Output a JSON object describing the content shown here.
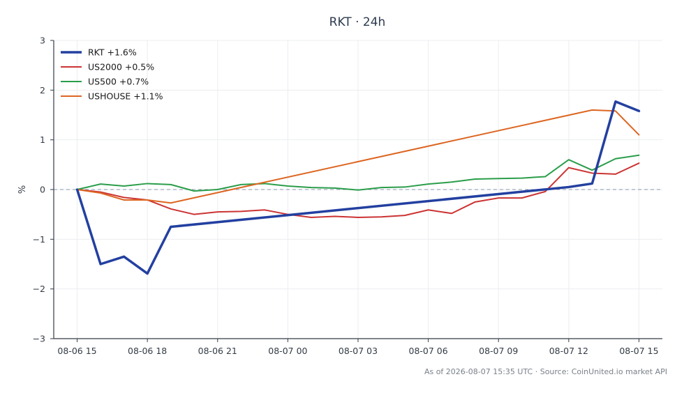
{
  "chart_data": {
    "type": "line",
    "title": "RKT · 24h",
    "xlabel": "",
    "ylabel": "%",
    "ylim": [
      -3,
      3
    ],
    "yticks": [
      3,
      2,
      1,
      0,
      -1,
      -2,
      -3
    ],
    "ytick_labels": [
      "3",
      "2",
      "1",
      "0",
      "−1",
      "−2",
      "−3"
    ],
    "xlim": [
      "08-06 14",
      "08-07 16"
    ],
    "x_ticks": [
      "08-06 15",
      "08-06 18",
      "08-06 21",
      "08-07 00",
      "08-07 03",
      "08-07 06",
      "08-07 09",
      "08-07 12",
      "08-07 15"
    ],
    "grid": true,
    "zero_line": true,
    "legend_position": "top-left",
    "series": [
      {
        "name": "RKT +1.6%",
        "color": "#2340a0",
        "width": 3.5,
        "points": [
          [
            "08-06 15",
            0.0
          ],
          [
            "08-06 16",
            -1.5
          ],
          [
            "08-06 17",
            -1.35
          ],
          [
            "08-06 18",
            -1.69
          ],
          [
            "08-06 19",
            -0.75
          ],
          [
            "08-07 12",
            0.05
          ],
          [
            "08-07 13",
            0.12
          ],
          [
            "08-07 14",
            1.77
          ],
          [
            "08-07 15",
            1.58
          ]
        ]
      },
      {
        "name": "US2000 +0.5%",
        "color": "#cc3333",
        "width": 2,
        "points": [
          [
            "08-06 15",
            0.0
          ],
          [
            "08-06 16",
            -0.05
          ],
          [
            "08-06 17",
            -0.16
          ],
          [
            "08-06 18",
            -0.21
          ],
          [
            "08-06 19",
            -0.39
          ],
          [
            "08-06 20",
            -0.5
          ],
          [
            "08-06 21",
            -0.45
          ],
          [
            "08-06 22",
            -0.44
          ],
          [
            "08-06 23",
            -0.41
          ],
          [
            "08-07 00",
            -0.5
          ],
          [
            "08-07 01",
            -0.56
          ],
          [
            "08-07 02",
            -0.54
          ],
          [
            "08-07 03",
            -0.56
          ],
          [
            "08-07 04",
            -0.55
          ],
          [
            "08-07 05",
            -0.52
          ],
          [
            "08-07 06",
            -0.41
          ],
          [
            "08-07 07",
            -0.48
          ],
          [
            "08-07 08",
            -0.25
          ],
          [
            "08-07 09",
            -0.17
          ],
          [
            "08-07 10",
            -0.17
          ],
          [
            "08-07 11",
            -0.04
          ],
          [
            "08-07 12",
            0.44
          ],
          [
            "08-07 13",
            0.33
          ],
          [
            "08-07 14",
            0.31
          ],
          [
            "08-07 15",
            0.53
          ]
        ]
      },
      {
        "name": "US500 +0.7%",
        "color": "#2a9d4a",
        "width": 2,
        "points": [
          [
            "08-06 15",
            0.0
          ],
          [
            "08-06 16",
            0.11
          ],
          [
            "08-06 17",
            0.07
          ],
          [
            "08-06 18",
            0.12
          ],
          [
            "08-06 19",
            0.1
          ],
          [
            "08-06 20",
            -0.03
          ],
          [
            "08-06 21",
            0.0
          ],
          [
            "08-06 22",
            0.1
          ],
          [
            "08-06 23",
            0.12
          ],
          [
            "08-07 00",
            0.07
          ],
          [
            "08-07 01",
            0.04
          ],
          [
            "08-07 02",
            0.03
          ],
          [
            "08-07 03",
            -0.01
          ],
          [
            "08-07 04",
            0.04
          ],
          [
            "08-07 05",
            0.05
          ],
          [
            "08-07 06",
            0.11
          ],
          [
            "08-07 07",
            0.15
          ],
          [
            "08-07 08",
            0.21
          ],
          [
            "08-07 09",
            0.22
          ],
          [
            "08-07 10",
            0.23
          ],
          [
            "08-07 11",
            0.26
          ],
          [
            "08-07 12",
            0.6
          ],
          [
            "08-07 13",
            0.39
          ],
          [
            "08-07 14",
            0.62
          ],
          [
            "08-07 15",
            0.69
          ]
        ]
      },
      {
        "name": "USHOUSE +1.1%",
        "color": "#dd6622",
        "width": 2,
        "points": [
          [
            "08-06 15",
            0.0
          ],
          [
            "08-06 16",
            -0.07
          ],
          [
            "08-06 17",
            -0.21
          ],
          [
            "08-06 18",
            -0.21
          ],
          [
            "08-06 19",
            -0.27
          ],
          [
            "08-07 13",
            1.6
          ],
          [
            "08-07 14",
            1.58
          ],
          [
            "08-07 15",
            1.1
          ]
        ]
      }
    ]
  },
  "footer": "As of 2026-08-07 15:35 UTC · Source: CoinUnited.io market API"
}
